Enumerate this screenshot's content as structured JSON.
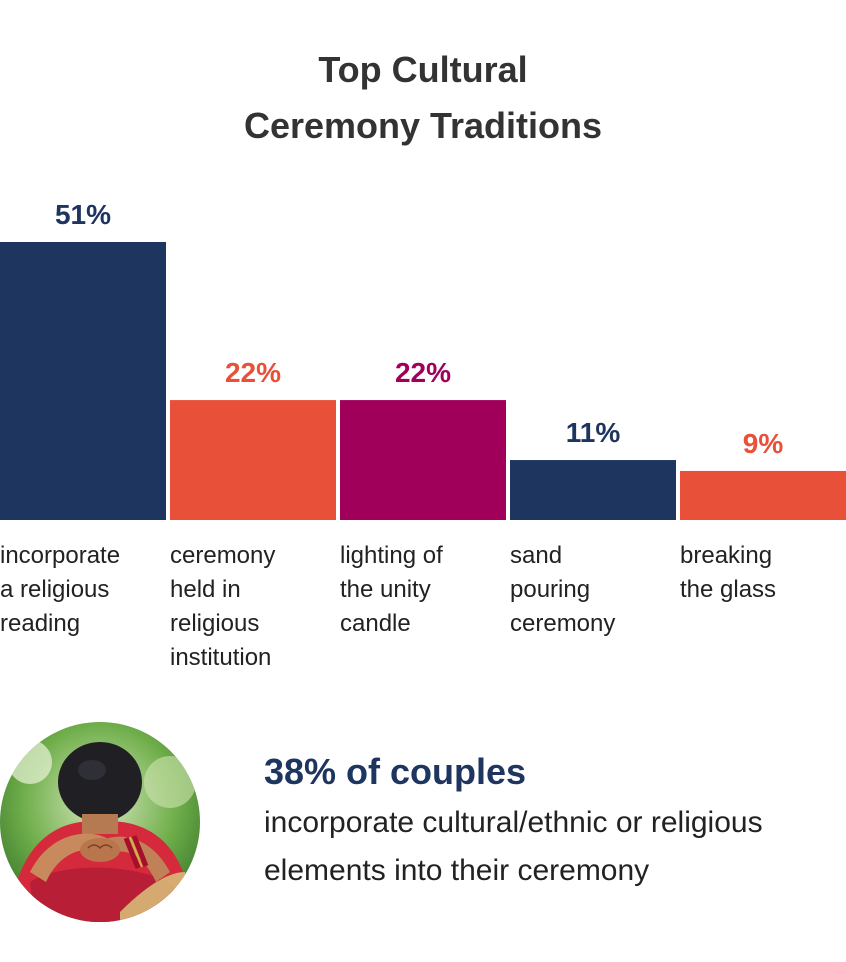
{
  "header": {
    "title_line1": "Top Cultural",
    "title_line2": "Ceremony Traditions"
  },
  "chart_data": {
    "type": "bar",
    "title": "Top Cultural Ceremony Traditions",
    "categories": [
      "incorporate a religious reading",
      "ceremony held in religious institution",
      "lighting of the unity candle",
      "sand pouring ceremony",
      "breaking the glass"
    ],
    "values": [
      51,
      22,
      22,
      11,
      9
    ],
    "value_labels": [
      "51%",
      "22%",
      "22%",
      "11%",
      "9%"
    ],
    "label_lines": [
      [
        "incorporate",
        "a religious",
        "reading"
      ],
      [
        "ceremony",
        "held in",
        "religious",
        "institution"
      ],
      [
        "lighting of",
        "the unity",
        "candle"
      ],
      [
        "sand",
        "pouring",
        "ceremony"
      ],
      [
        "breaking",
        "the glass"
      ]
    ],
    "colors": [
      "#1e3560",
      "#e8503a",
      "#a0005a",
      "#1e3560",
      "#e8503a"
    ],
    "xlabel": "",
    "ylabel": "",
    "ylim": [
      0,
      51
    ],
    "grid": false,
    "legend": "none"
  },
  "stat": {
    "headline": "38% of couples",
    "line1": "incorporate cultural/ethnic or religious",
    "line2": "elements into their ceremony"
  },
  "photo": {
    "icon": "couple-photo-icon"
  }
}
